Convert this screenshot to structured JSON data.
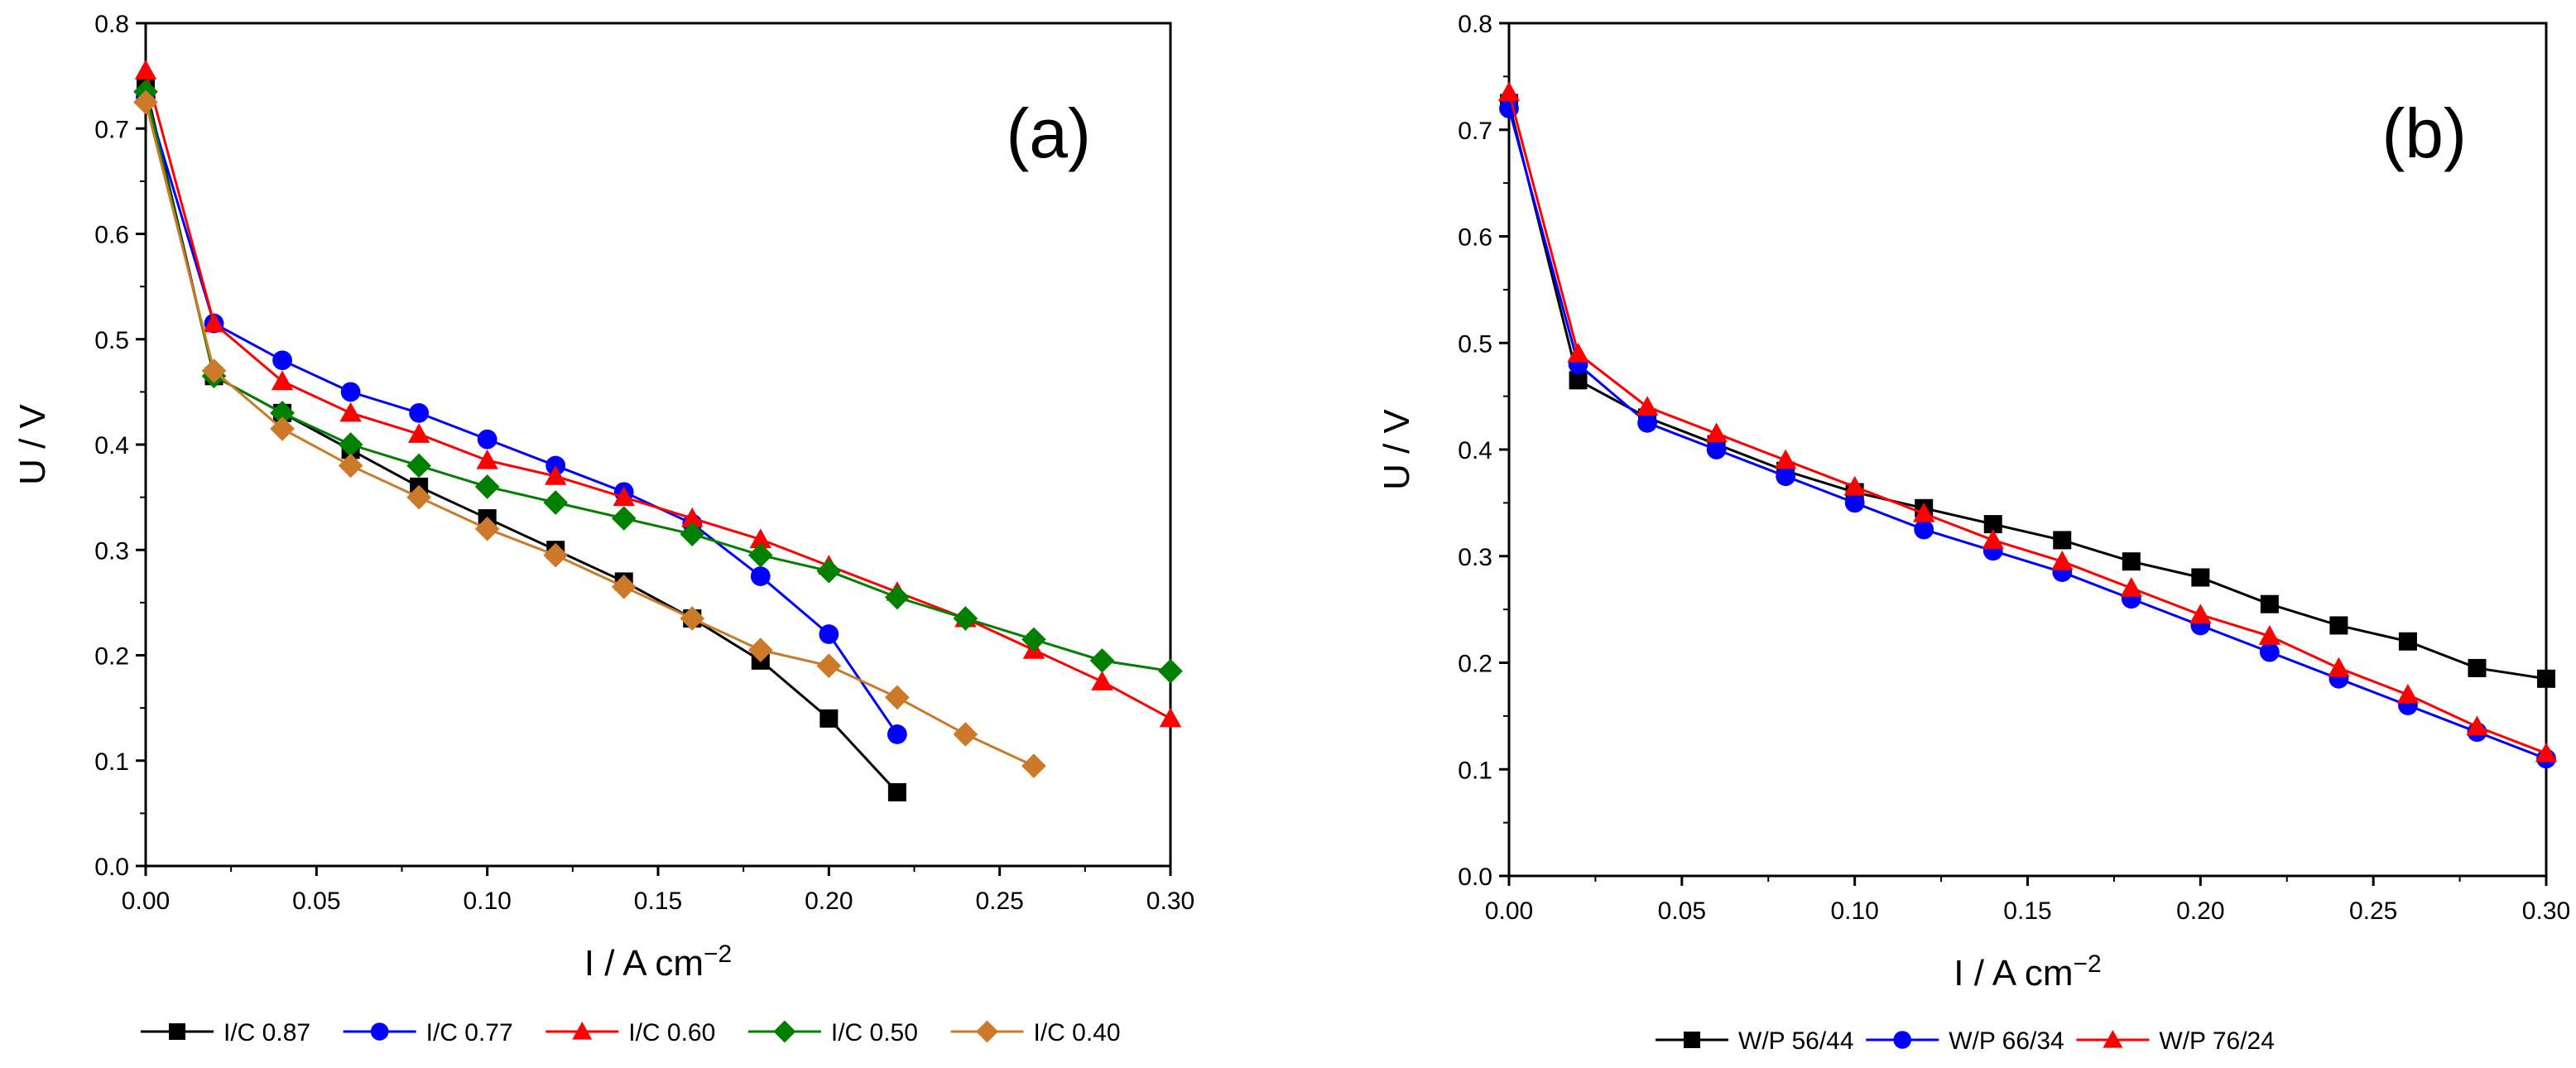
{
  "chart_data": [
    {
      "type": "line",
      "panel_label": "(a)",
      "xlabel": "I  /  A cm",
      "xlabel_sup": "−2",
      "ylabel": "U  /  V",
      "xlim": [
        0,
        0.3
      ],
      "ylim": [
        0,
        0.8
      ],
      "xticks": [
        0.0,
        0.05,
        0.1,
        0.15,
        0.2,
        0.25,
        0.3
      ],
      "xtick_labels": [
        "0.00",
        "0.05",
        "0.10",
        "0.15",
        "0.20",
        "0.25",
        "0.30"
      ],
      "yticks": [
        0.0,
        0.1,
        0.2,
        0.3,
        0.4,
        0.5,
        0.6,
        0.7,
        0.8
      ],
      "ytick_labels": [
        "0.0",
        "0.1",
        "0.2",
        "0.3",
        "0.4",
        "0.5",
        "0.6",
        "0.7",
        "0.8"
      ],
      "grid": false,
      "legend_position": "bottom",
      "series": [
        {
          "name": "I/C 0.87",
          "color": "#000000",
          "marker": "square",
          "x": [
            0.0,
            0.02,
            0.04,
            0.06,
            0.08,
            0.1,
            0.12,
            0.14,
            0.16,
            0.18,
            0.2,
            0.22
          ],
          "y": [
            0.74,
            0.465,
            0.43,
            0.395,
            0.36,
            0.33,
            0.3,
            0.27,
            0.235,
            0.195,
            0.14,
            0.07
          ]
        },
        {
          "name": "I/C 0.77",
          "color": "#0000ff",
          "marker": "circle",
          "x": [
            0.0,
            0.02,
            0.04,
            0.06,
            0.08,
            0.1,
            0.12,
            0.14,
            0.16,
            0.18,
            0.2,
            0.22
          ],
          "y": [
            0.73,
            0.515,
            0.48,
            0.45,
            0.43,
            0.405,
            0.38,
            0.355,
            0.325,
            0.275,
            0.22,
            0.125
          ]
        },
        {
          "name": "I/C 0.60",
          "color": "#ff0000",
          "marker": "triangle",
          "x": [
            0.0,
            0.02,
            0.04,
            0.06,
            0.08,
            0.1,
            0.12,
            0.14,
            0.16,
            0.18,
            0.2,
            0.22,
            0.24,
            0.26,
            0.28,
            0.3
          ],
          "y": [
            0.755,
            0.515,
            0.46,
            0.43,
            0.41,
            0.385,
            0.37,
            0.35,
            0.33,
            0.31,
            0.285,
            0.26,
            0.235,
            0.205,
            0.175,
            0.14
          ]
        },
        {
          "name": "I/C 0.50",
          "color": "#008000",
          "marker": "diamond",
          "x": [
            0.0,
            0.02,
            0.04,
            0.06,
            0.08,
            0.1,
            0.12,
            0.14,
            0.16,
            0.18,
            0.2,
            0.22,
            0.24,
            0.26,
            0.28,
            0.3
          ],
          "y": [
            0.735,
            0.465,
            0.43,
            0.4,
            0.38,
            0.36,
            0.345,
            0.33,
            0.315,
            0.295,
            0.28,
            0.255,
            0.235,
            0.215,
            0.195,
            0.185
          ]
        },
        {
          "name": "I/C 0.40",
          "color": "#cc7a29",
          "marker": "diamond",
          "x": [
            0.0,
            0.02,
            0.04,
            0.06,
            0.08,
            0.1,
            0.12,
            0.14,
            0.16,
            0.18,
            0.2,
            0.22,
            0.24,
            0.26
          ],
          "y": [
            0.725,
            0.47,
            0.415,
            0.38,
            0.35,
            0.32,
            0.295,
            0.265,
            0.235,
            0.205,
            0.19,
            0.16,
            0.125,
            0.095
          ]
        }
      ]
    },
    {
      "type": "line",
      "panel_label": "(b)",
      "xlabel": "I  /  A cm",
      "xlabel_sup": "−2",
      "ylabel": "U  /  V",
      "xlim": [
        0,
        0.3
      ],
      "ylim": [
        0,
        0.8
      ],
      "xticks": [
        0.0,
        0.05,
        0.1,
        0.15,
        0.2,
        0.25,
        0.3
      ],
      "xtick_labels": [
        "0.00",
        "0.05",
        "0.10",
        "0.15",
        "0.20",
        "0.25",
        "0.30"
      ],
      "yticks": [
        0.0,
        0.1,
        0.2,
        0.3,
        0.4,
        0.5,
        0.6,
        0.7,
        0.8
      ],
      "ytick_labels": [
        "0.0",
        "0.1",
        "0.2",
        "0.3",
        "0.4",
        "0.5",
        "0.6",
        "0.7",
        "0.8"
      ],
      "grid": false,
      "legend_position": "bottom",
      "series": [
        {
          "name": "W/P 56/44",
          "color": "#000000",
          "marker": "square",
          "x": [
            0.0,
            0.02,
            0.04,
            0.06,
            0.08,
            0.1,
            0.12,
            0.14,
            0.16,
            0.18,
            0.2,
            0.22,
            0.24,
            0.26,
            0.28,
            0.3
          ],
          "y": [
            0.725,
            0.465,
            0.43,
            0.405,
            0.38,
            0.36,
            0.345,
            0.33,
            0.315,
            0.295,
            0.28,
            0.255,
            0.235,
            0.22,
            0.195,
            0.185
          ]
        },
        {
          "name": "W/P 66/34",
          "color": "#0000ff",
          "marker": "circle",
          "x": [
            0.0,
            0.02,
            0.04,
            0.06,
            0.08,
            0.1,
            0.12,
            0.14,
            0.16,
            0.18,
            0.2,
            0.22,
            0.24,
            0.26,
            0.28,
            0.3
          ],
          "y": [
            0.72,
            0.48,
            0.425,
            0.4,
            0.375,
            0.35,
            0.325,
            0.305,
            0.285,
            0.26,
            0.235,
            0.21,
            0.185,
            0.16,
            0.135,
            0.11
          ]
        },
        {
          "name": "W/P 76/24",
          "color": "#ff0000",
          "marker": "triangle",
          "x": [
            0.0,
            0.02,
            0.04,
            0.06,
            0.08,
            0.1,
            0.12,
            0.14,
            0.16,
            0.18,
            0.2,
            0.22,
            0.24,
            0.26,
            0.28,
            0.3
          ],
          "y": [
            0.735,
            0.49,
            0.44,
            0.415,
            0.39,
            0.365,
            0.34,
            0.315,
            0.295,
            0.27,
            0.245,
            0.225,
            0.195,
            0.17,
            0.14,
            0.115
          ]
        }
      ]
    }
  ]
}
